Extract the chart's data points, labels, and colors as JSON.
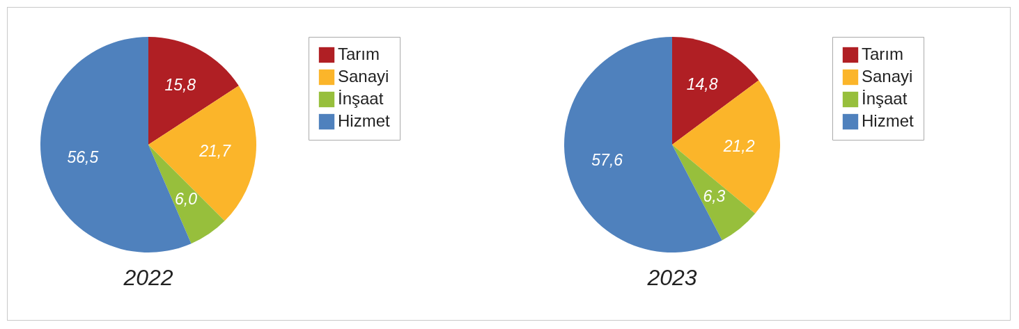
{
  "chart_data": [
    {
      "type": "pie",
      "title": "2022",
      "categories": [
        "Tarım",
        "Sanayi",
        "İnşaat",
        "Hizmet"
      ],
      "values": [
        15.8,
        21.7,
        6.0,
        56.5
      ],
      "value_labels": [
        "15,8",
        "21,7",
        "6,0",
        "56,5"
      ],
      "colors": [
        "#b01f24",
        "#fbb52a",
        "#97bf3c",
        "#4f81bd"
      ],
      "legend": "right"
    },
    {
      "type": "pie",
      "title": "2023",
      "categories": [
        "Tarım",
        "Sanayi",
        "İnşaat",
        "Hizmet"
      ],
      "values": [
        14.8,
        21.2,
        6.3,
        57.6
      ],
      "value_labels": [
        "14,8",
        "21,2",
        "6,3",
        "57,6"
      ],
      "colors": [
        "#b01f24",
        "#fbb52a",
        "#97bf3c",
        "#4f81bd"
      ],
      "legend": "right"
    }
  ]
}
